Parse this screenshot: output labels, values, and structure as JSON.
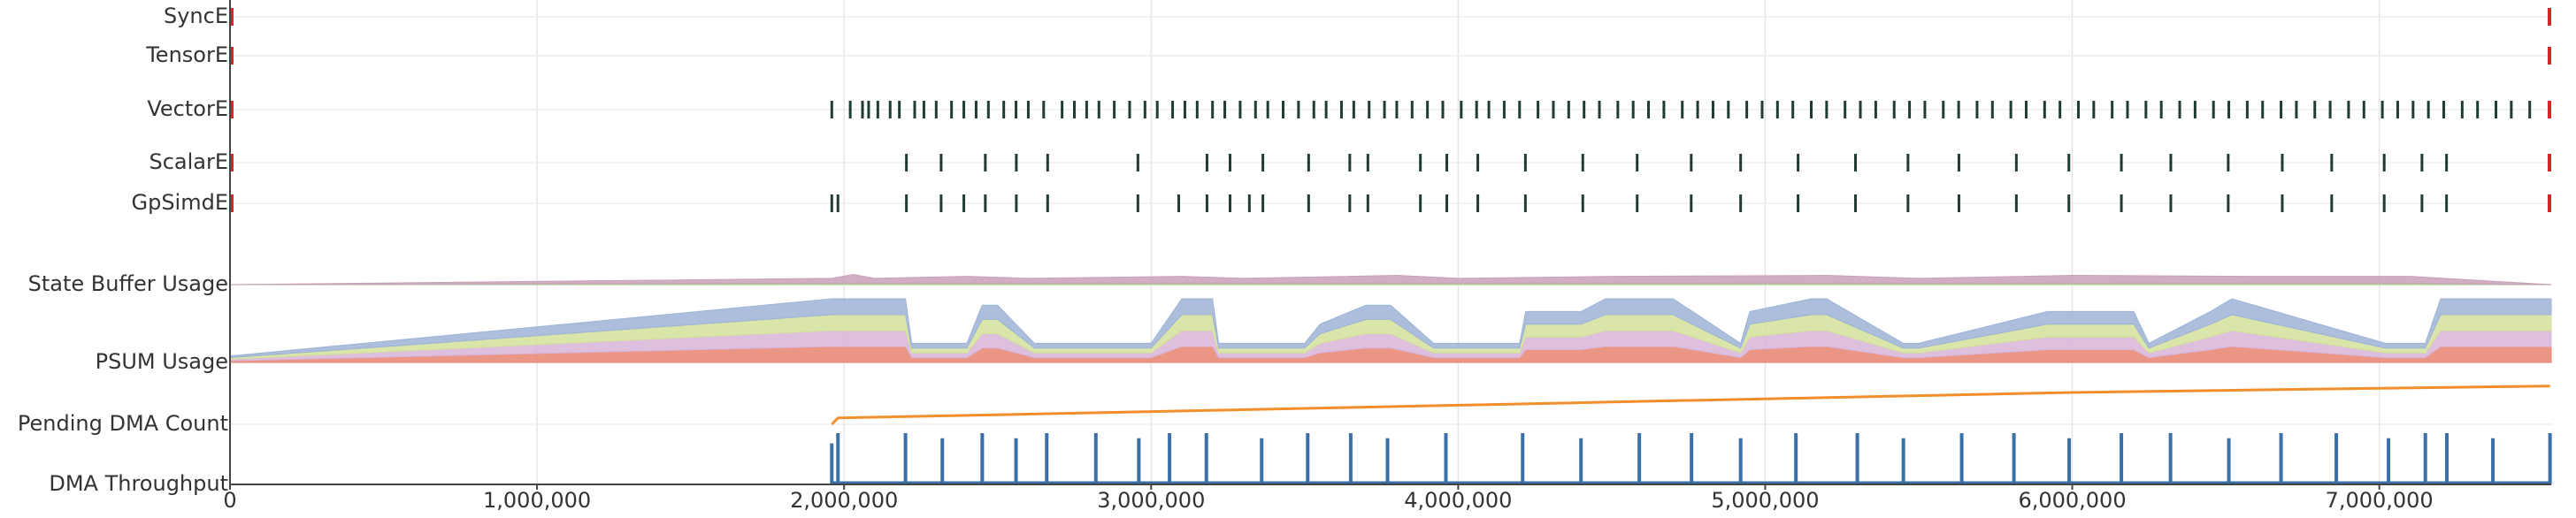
{
  "chart_data": {
    "type": "timeline",
    "xlim": [
      0,
      7560000
    ],
    "xticks": [
      0,
      {
        "value": 1000000,
        "label": "1,000,000"
      },
      {
        "value": 2000000,
        "label": "2,000,000"
      },
      {
        "value": 3000000,
        "label": "3,000,000"
      },
      {
        "value": 4000000,
        "label": "4,000,000"
      },
      {
        "value": 5000000,
        "label": "5,000,000"
      },
      {
        "value": 6000000,
        "label": "6,000,000"
      },
      {
        "value": 7000000,
        "label": "7,000,000"
      }
    ],
    "grid": true,
    "boundary_markers": [
      0,
      7556000
    ],
    "boundary_color": "#d62728",
    "lanes": [
      {
        "label": "SyncE",
        "type": "events",
        "color": "#1f3d2f",
        "events": []
      },
      {
        "label": "TensorE",
        "type": "events",
        "color": "#1f3d2f",
        "events": []
      },
      {
        "label": "VectorE",
        "type": "events",
        "color": "#1f3d2f",
        "events": [
          1960000,
          2020000,
          2060000,
          2080000,
          2110000,
          2150000,
          2180000,
          2230000,
          2260000,
          2300000,
          2350000,
          2390000,
          2430000,
          2470000,
          2520000,
          2560000,
          2600000,
          2650000,
          2710000,
          2750000,
          2790000,
          2830000,
          2880000,
          2930000,
          2980000,
          3020000,
          3070000,
          3110000,
          3150000,
          3200000,
          3240000,
          3290000,
          3340000,
          3380000,
          3430000,
          3480000,
          3530000,
          3570000,
          3620000,
          3660000,
          3710000,
          3760000,
          3800000,
          3850000,
          3900000,
          3950000,
          4010000,
          4060000,
          4100000,
          4150000,
          4200000,
          4260000,
          4310000,
          4360000,
          4410000,
          4460000,
          4520000,
          4570000,
          4620000,
          4670000,
          4730000,
          4780000,
          4830000,
          4880000,
          4940000,
          4990000,
          5040000,
          5090000,
          5150000,
          5200000,
          5260000,
          5310000,
          5360000,
          5420000,
          5470000,
          5520000,
          5580000,
          5630000,
          5690000,
          5740000,
          5800000,
          5850000,
          5910000,
          5960000,
          6020000,
          6070000,
          6130000,
          6180000,
          6240000,
          6290000,
          6350000,
          6400000,
          6460000,
          6510000,
          6570000,
          6620000,
          6680000,
          6730000,
          6790000,
          6840000,
          6900000,
          6950000,
          7010000,
          7060000,
          7110000,
          7160000,
          7210000,
          7270000,
          7320000,
          7380000,
          7430000,
          7490000
        ]
      },
      {
        "label": "ScalarE",
        "type": "events",
        "color": "#1f3d2f",
        "events": [
          2203000,
          2316000,
          2460000,
          2561000,
          2663000,
          2957000,
          3182000,
          3257000,
          3364000,
          3513000,
          3647000,
          3706000,
          3877000,
          3963000,
          4064000,
          4219000,
          4406000,
          4583000,
          4759000,
          4920000,
          5107000,
          5294000,
          5465000,
          5631000,
          5818000,
          5989000,
          6160000,
          6321000,
          6508000,
          6684000,
          6845000,
          7016000,
          7139000,
          7219000
        ]
      },
      {
        "label": "GpSimdE",
        "type": "events",
        "color": "#1f3d2f",
        "events": [
          1960000,
          1980000,
          2203000,
          2316000,
          2390000,
          2460000,
          2561000,
          2663000,
          2957000,
          3090000,
          3182000,
          3257000,
          3320000,
          3364000,
          3513000,
          3647000,
          3706000,
          3877000,
          3963000,
          4064000,
          4219000,
          4406000,
          4583000,
          4759000,
          4920000,
          5107000,
          5294000,
          5465000,
          5631000,
          5818000,
          5989000,
          6160000,
          6321000,
          6508000,
          6684000,
          6845000,
          7016000,
          7139000,
          7219000
        ]
      },
      {
        "label": "State Buffer Usage",
        "type": "stacked_area",
        "ylim": [
          0,
          2
        ],
        "x": [
          0,
          1960000,
          2030000,
          2100000,
          2400000,
          2600000,
          3100000,
          3300000,
          3800000,
          4000000,
          4500000,
          5200000,
          5500000,
          6000000,
          6600000,
          7100000,
          7560000
        ],
        "series": [
          {
            "color": "#a8d08d",
            "values": [
              0,
              0.15,
              0.15,
              0.15,
              0.15,
              0.15,
              0.15,
              0.15,
              0.15,
              0.15,
              0.15,
              0.15,
              0.15,
              0.15,
              0.15,
              0.15,
              0
            ]
          },
          {
            "color": "#c9a0b8",
            "values": [
              0,
              0.5,
              0.9,
              0.5,
              0.7,
              0.5,
              0.7,
              0.5,
              0.8,
              0.5,
              0.7,
              0.8,
              0.5,
              0.8,
              0.7,
              0.7,
              0
            ]
          }
        ]
      },
      {
        "label": "PSUM Usage",
        "type": "stacked_area",
        "ylim": [
          0,
          4
        ],
        "x": [
          0,
          1960000,
          2200000,
          2220000,
          2400000,
          2450000,
          2500000,
          2620000,
          2800000,
          2950000,
          3000000,
          3100000,
          3200000,
          3220000,
          3500000,
          3550000,
          3700000,
          3780000,
          3920000,
          4200000,
          4220000,
          4400000,
          4480000,
          4700000,
          4920000,
          4950000,
          5150000,
          5200000,
          5450000,
          5500000,
          5920000,
          6200000,
          6250000,
          6450000,
          6520000,
          7020000,
          7150000,
          7200000,
          7560000
        ],
        "series": [
          {
            "color": "#e8846f",
            "values": [
              0.1,
              1,
              1,
              0.3,
              0.3,
              0.9,
              0.9,
              0.3,
              0.3,
              0.3,
              0.3,
              1,
              1,
              0.3,
              0.3,
              0.6,
              0.9,
              0.9,
              0.3,
              0.3,
              0.8,
              0.8,
              1,
              1,
              0.3,
              0.8,
              1,
              1,
              0.3,
              0.3,
              0.8,
              0.8,
              0.3,
              0.8,
              1,
              0.3,
              0.3,
              1,
              1
            ]
          },
          {
            "color": "#d8b4d8",
            "values": [
              0.1,
              1,
              1,
              0.3,
              0.3,
              0.9,
              0.9,
              0.3,
              0.3,
              0.3,
              0.3,
              1,
              1,
              0.3,
              0.3,
              0.6,
              0.9,
              0.9,
              0.3,
              0.3,
              0.8,
              0.8,
              1,
              1,
              0.3,
              0.8,
              1,
              1,
              0.3,
              0.3,
              0.8,
              0.8,
              0.3,
              0.8,
              1,
              0.3,
              0.3,
              1,
              1
            ]
          },
          {
            "color": "#d4e09b",
            "values": [
              0.1,
              1,
              1,
              0.3,
              0.3,
              0.9,
              0.9,
              0.3,
              0.3,
              0.3,
              0.3,
              1,
              1,
              0.3,
              0.3,
              0.6,
              0.9,
              0.9,
              0.3,
              0.3,
              0.8,
              0.8,
              1,
              1,
              0.3,
              0.8,
              1,
              1,
              0.3,
              0.3,
              0.8,
              0.8,
              0.3,
              0.8,
              1,
              0.3,
              0.3,
              1,
              1
            ]
          },
          {
            "color": "#9db3d6",
            "values": [
              0.1,
              1,
              1,
              0.3,
              0.3,
              0.9,
              0.9,
              0.3,
              0.3,
              0.3,
              0.3,
              1,
              1,
              0.3,
              0.3,
              0.6,
              0.9,
              0.9,
              0.3,
              0.3,
              0.8,
              0.8,
              1,
              1,
              0.3,
              0.8,
              1,
              1,
              0.3,
              0.3,
              0.8,
              0.8,
              0.3,
              0.8,
              1,
              0.3,
              0.3,
              1,
              1
            ]
          }
        ]
      },
      {
        "label": "Pending DMA Count",
        "type": "line",
        "color": "#f28e2b",
        "ylim": [
          0,
          40
        ],
        "x": [
          1960000,
          1980000,
          2500000,
          3000000,
          3500000,
          4000000,
          4500000,
          5000000,
          5500000,
          6000000,
          6500000,
          7000000,
          7556000
        ],
        "values": [
          0,
          6,
          9,
          12,
          15,
          18,
          21,
          24,
          27,
          30,
          32,
          34,
          36
        ]
      },
      {
        "label": "DMA Throughput",
        "type": "spikes",
        "color": "#3a6fa8",
        "ylim": [
          0,
          10
        ],
        "x": [
          1960000,
          1980000,
          2200000,
          2320000,
          2450000,
          2560000,
          2660000,
          2820000,
          2960000,
          3060000,
          3180000,
          3360000,
          3510000,
          3650000,
          3770000,
          3960000,
          4210000,
          4400000,
          4590000,
          4760000,
          4920000,
          5100000,
          5300000,
          5450000,
          5640000,
          5810000,
          5990000,
          6160000,
          6320000,
          6510000,
          6680000,
          6860000,
          7030000,
          7150000,
          7220000,
          7370000,
          7556000
        ],
        "values": [
          8,
          10,
          10,
          9,
          10,
          9,
          10,
          10,
          9,
          10,
          10,
          9,
          10,
          10,
          9,
          10,
          10,
          9,
          10,
          10,
          9,
          10,
          10,
          9,
          10,
          10,
          9,
          10,
          10,
          9,
          10,
          10,
          9,
          10,
          10,
          9,
          10
        ]
      }
    ]
  }
}
